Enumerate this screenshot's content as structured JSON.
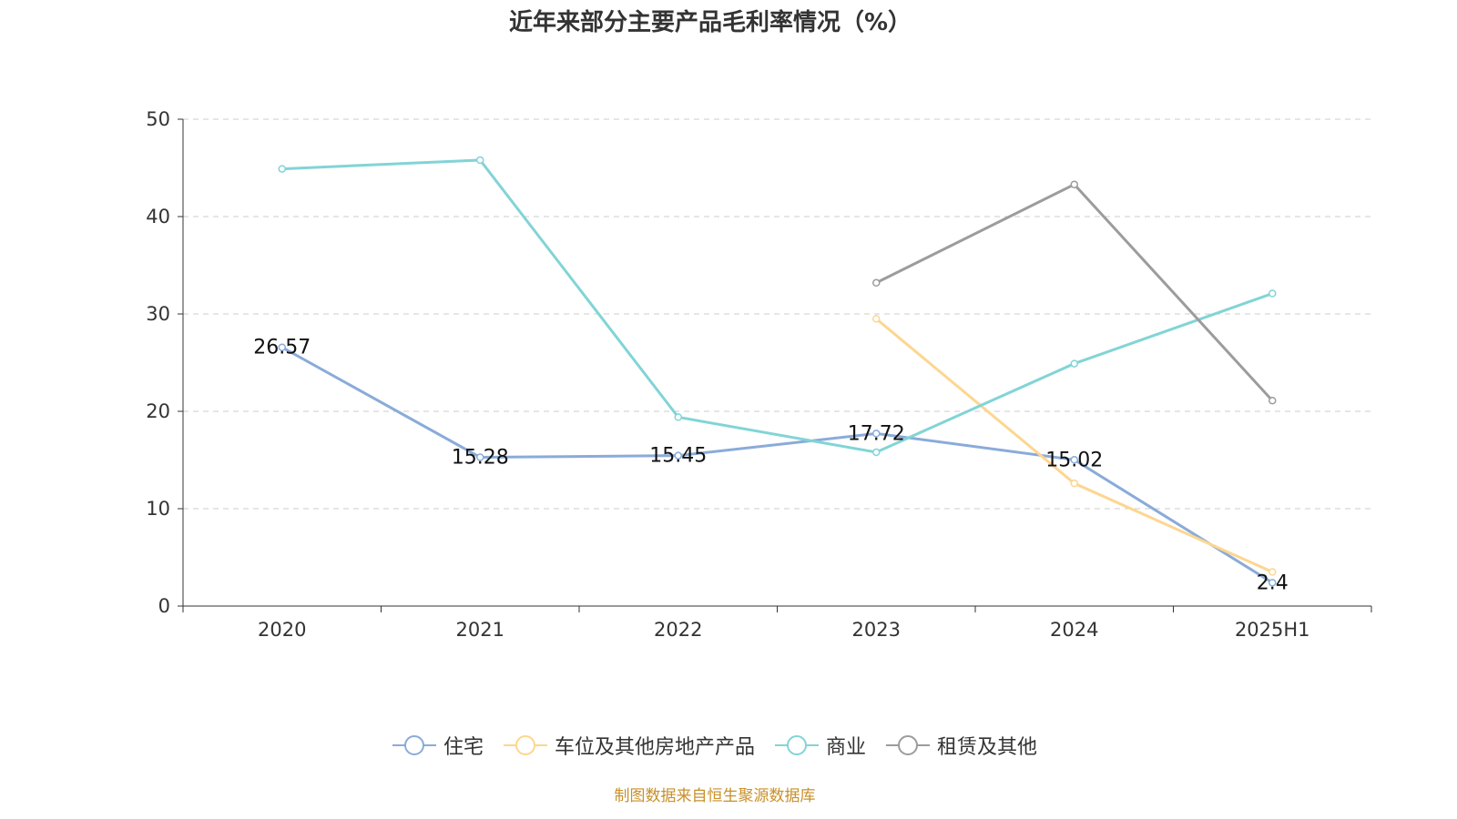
{
  "chart_data": {
    "type": "line",
    "title": "近年来部分主要产品毛利率情况（%）",
    "categories": [
      "2020",
      "2021",
      "2022",
      "2023",
      "2024",
      "2025H1"
    ],
    "ylim": [
      0,
      50
    ],
    "yticks": [
      0,
      10,
      20,
      30,
      40,
      50
    ],
    "grid": true,
    "legend_position": "bottom",
    "series": [
      {
        "name": "住宅",
        "color": "#8aabd9",
        "values": [
          26.57,
          15.28,
          15.45,
          17.72,
          15.02,
          2.4
        ],
        "labels": [
          "26.57",
          "15.28",
          "15.45",
          "17.72",
          "15.02",
          "2.4"
        ]
      },
      {
        "name": "车位及其他房地产产品",
        "color": "#fdd68f",
        "values": [
          null,
          null,
          null,
          29.5,
          12.6,
          3.5
        ]
      },
      {
        "name": "商业",
        "color": "#82d4d6",
        "values": [
          44.9,
          45.8,
          19.4,
          15.8,
          24.9,
          32.1
        ]
      },
      {
        "name": "租赁及其他",
        "color": "#9c9c9c",
        "values": [
          null,
          null,
          null,
          33.2,
          43.3,
          21.1
        ]
      }
    ]
  },
  "source": "制图数据来自恒生聚源数据库"
}
